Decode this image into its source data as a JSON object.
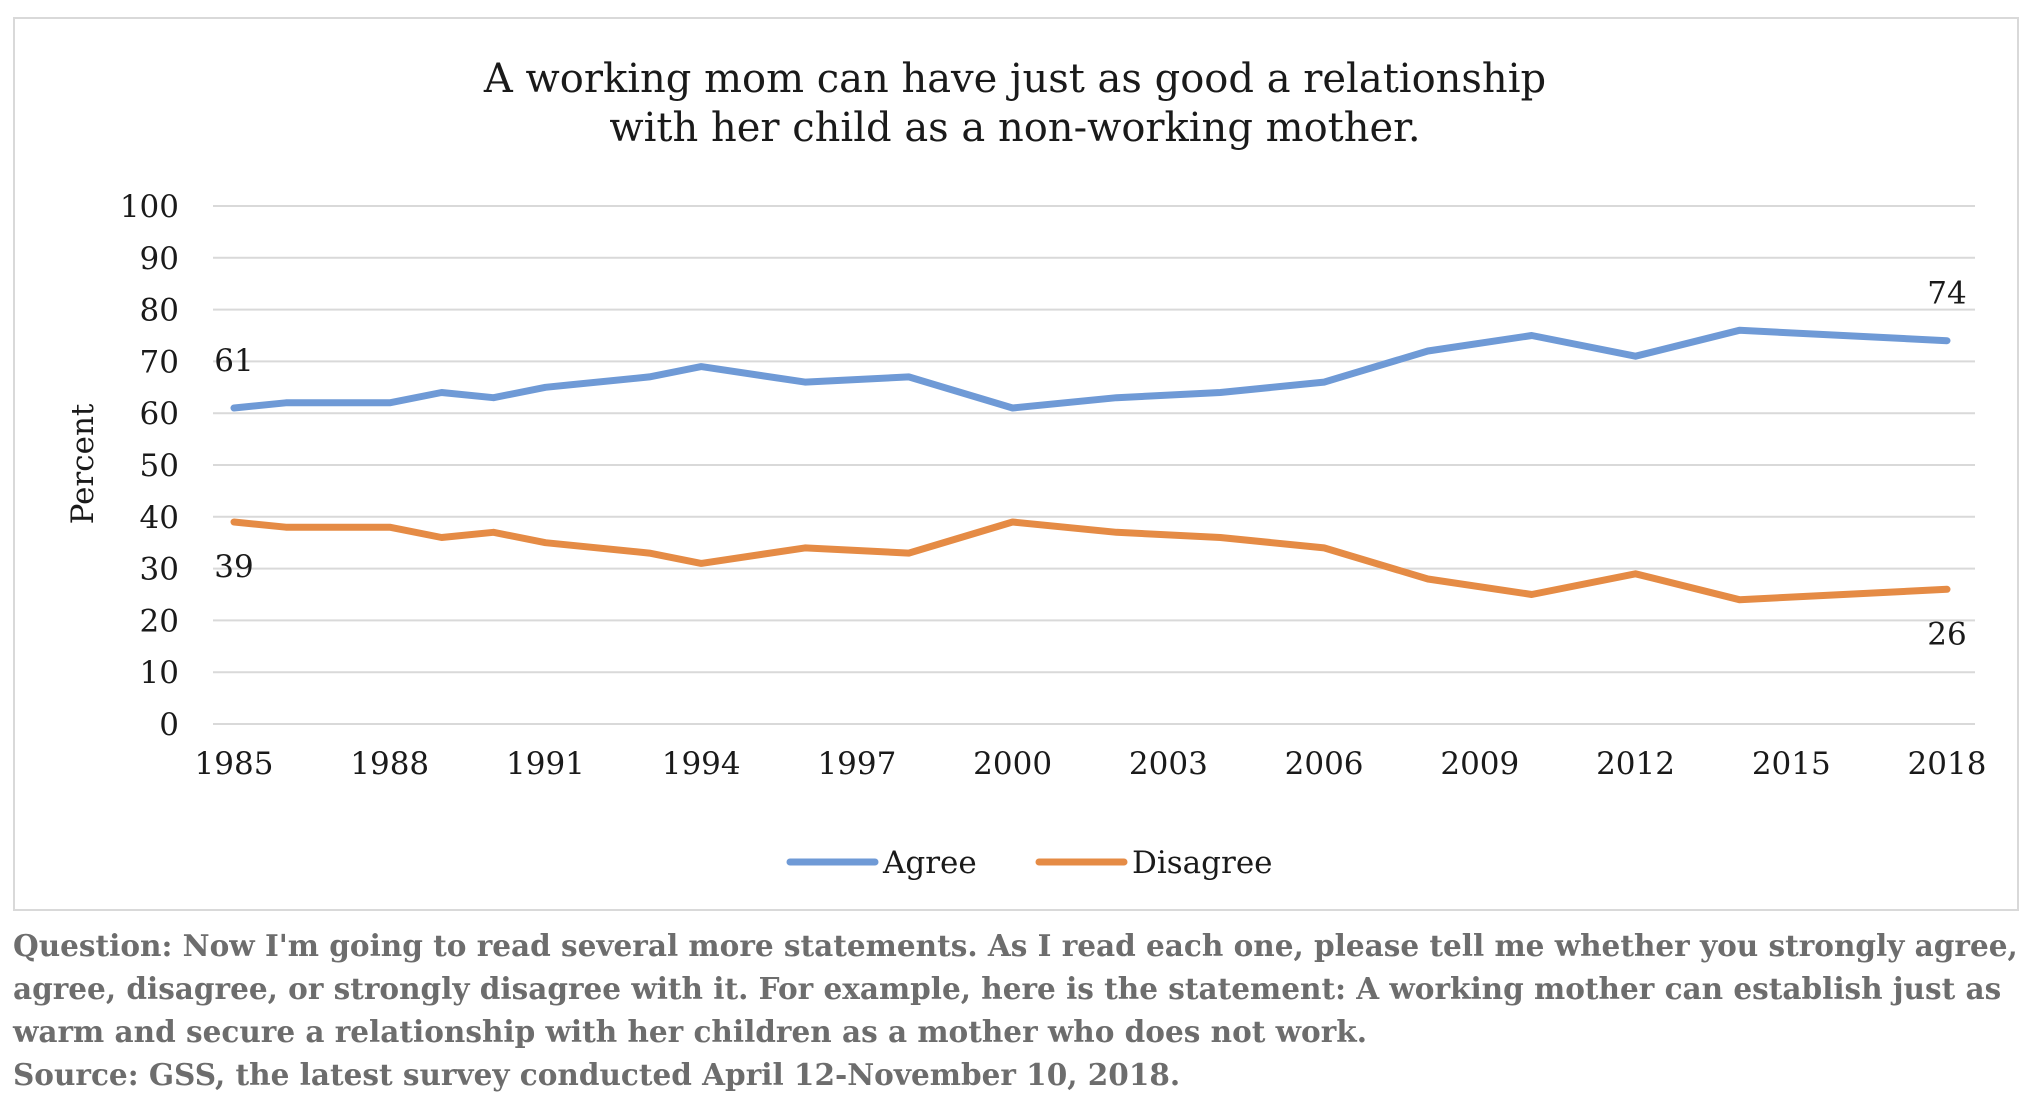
{
  "chart_data": {
    "type": "line",
    "title_lines": [
      "A working mom can have just as good a relationship",
      "with her child as a non-working mother."
    ],
    "xlabel": "",
    "ylabel": "Percent",
    "ylim": [
      0,
      100
    ],
    "y_ticks": [
      "0",
      "10",
      "20",
      "30",
      "40",
      "50",
      "60",
      "70",
      "80",
      "90",
      "100"
    ],
    "x_ticks": [
      "1985",
      "1988",
      "1991",
      "1994",
      "1997",
      "2000",
      "2003",
      "2006",
      "2009",
      "2012",
      "2015",
      "2018"
    ],
    "x_range": [
      1985,
      2018
    ],
    "grid": true,
    "legend_position": "bottom",
    "series": [
      {
        "name": "Agree",
        "color": "#6f9ad6",
        "x": [
          1985,
          1986,
          1988,
          1989,
          1990,
          1991,
          1993,
          1994,
          1996,
          1998,
          2000,
          2002,
          2004,
          2006,
          2008,
          2010,
          2012,
          2014,
          2016,
          2018
        ],
        "values": [
          61,
          62,
          62,
          64,
          63,
          65,
          67,
          69,
          66,
          67,
          61,
          63,
          64,
          66,
          72,
          75,
          71,
          76,
          75,
          74
        ],
        "labels": [
          {
            "x": 1985,
            "text": "61"
          },
          {
            "x": 2018,
            "text": "74"
          }
        ]
      },
      {
        "name": "Disagree",
        "color": "#e58b45",
        "x": [
          1985,
          1986,
          1988,
          1989,
          1990,
          1991,
          1993,
          1994,
          1996,
          1998,
          2000,
          2002,
          2004,
          2006,
          2008,
          2010,
          2012,
          2014,
          2016,
          2018
        ],
        "values": [
          39,
          38,
          38,
          36,
          37,
          35,
          33,
          31,
          34,
          33,
          39,
          37,
          36,
          34,
          28,
          25,
          29,
          24,
          25,
          26
        ],
        "labels": [
          {
            "x": 1985,
            "text": "39"
          },
          {
            "x": 2018,
            "text": "26"
          }
        ]
      }
    ]
  },
  "notes": {
    "question_lines": [
      "Question: Now I'm going to read several more statements. As I read each one, please tell me whether you strongly agree,",
      "agree, disagree, or strongly disagree with it. For example, here is the statement: A working mother can establish just as",
      "warm and secure a relationship with her children as a mother who does not work."
    ],
    "source": "Source: GSS, the latest survey conducted April 12-November 10, 2018."
  }
}
